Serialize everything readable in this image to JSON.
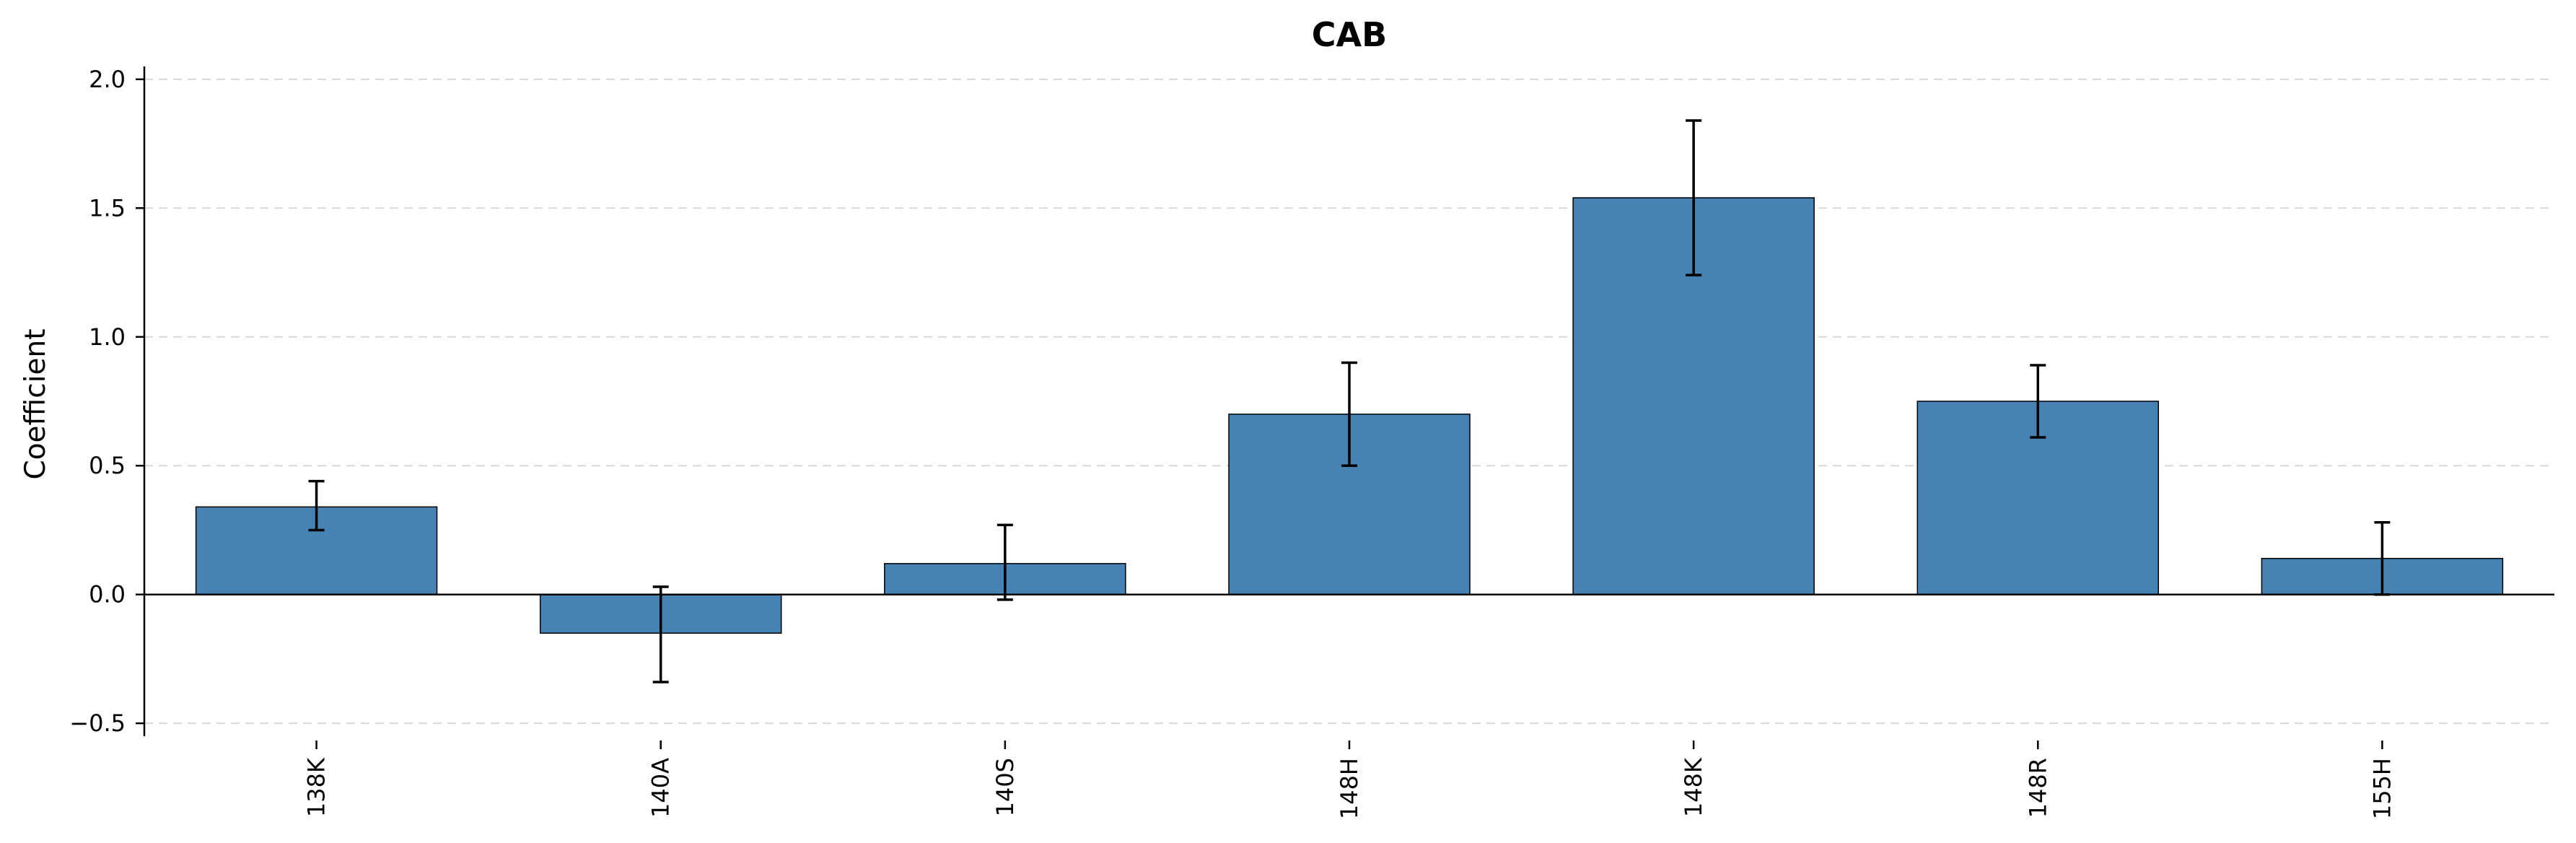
{
  "chart_data": {
    "type": "bar",
    "title": "CAB",
    "xlabel": "",
    "ylabel": "Coefficient",
    "categories": [
      "138K",
      "140A",
      "140S",
      "148H",
      "148K",
      "148R",
      "155H"
    ],
    "values": [
      0.34,
      -0.15,
      0.12,
      0.7,
      1.54,
      0.75,
      0.14
    ],
    "error_low": [
      0.25,
      -0.34,
      -0.02,
      0.5,
      1.24,
      0.61,
      0.0
    ],
    "error_high": [
      0.44,
      0.03,
      0.27,
      0.9,
      1.84,
      0.89,
      0.28
    ],
    "ylim": [
      -0.55,
      2.05
    ],
    "yticks": [
      -0.5,
      0.0,
      0.5,
      1.0,
      1.5,
      2.0
    ],
    "ytick_labels": [
      "−0.5",
      "0.0",
      "0.5",
      "1.0",
      "1.5",
      "2.0"
    ],
    "grid": true,
    "bar_color": "#4682b4"
  }
}
